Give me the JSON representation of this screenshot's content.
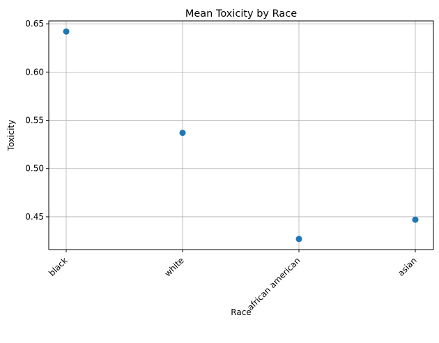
{
  "chart_data": {
    "type": "scatter",
    "title": "Mean Toxicity by Race",
    "xlabel": "Race",
    "ylabel": "Toxicity",
    "categories": [
      "black",
      "white",
      "african american",
      "asian"
    ],
    "values": [
      0.642,
      0.537,
      0.427,
      0.447
    ],
    "ylim": [
      0.416,
      0.653
    ],
    "yticks": [
      0.45,
      0.5,
      0.55,
      0.6,
      0.65
    ],
    "ytick_labels": [
      "0.45",
      "0.50",
      "0.55",
      "0.60",
      "0.65"
    ],
    "grid": true,
    "marker_color": "#1f77b4",
    "grid_color": "#b0b0b0"
  }
}
